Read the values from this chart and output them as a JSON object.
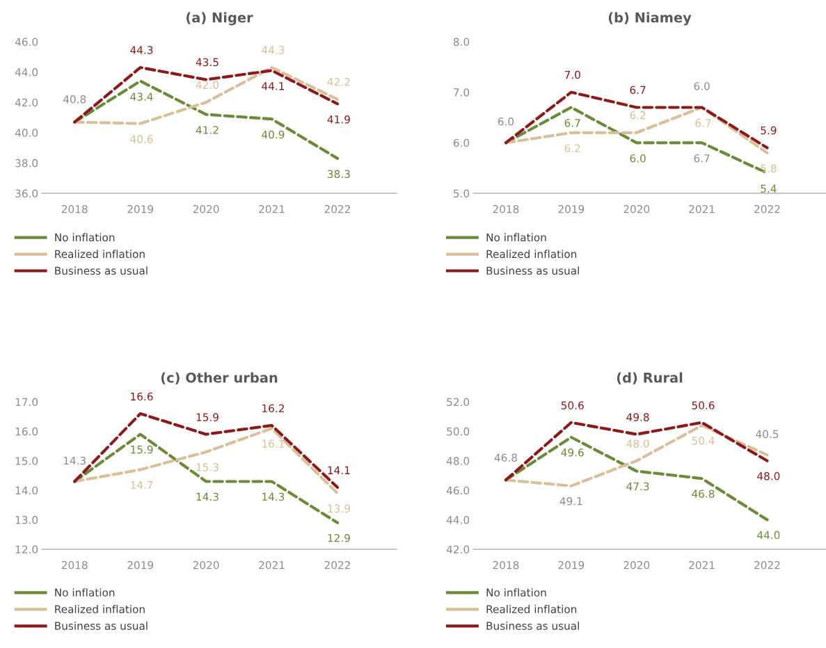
{
  "chart_data": [
    {
      "type": "line",
      "title": "(a) Niger",
      "categories": [
        "2018",
        "2019",
        "2020",
        "2021",
        "2022"
      ],
      "ylim": [
        36,
        46
      ],
      "yticks": [
        {
          "value": 36,
          "label": "36.0"
        },
        {
          "value": 38,
          "label": "38.0"
        },
        {
          "value": 40,
          "label": "40.0"
        },
        {
          "value": 42,
          "label": "42.0"
        },
        {
          "value": 44,
          "label": "44.0"
        },
        {
          "value": 46,
          "label": "46.0"
        }
      ],
      "grid": false,
      "legend": "bottom",
      "line_style": "dashed",
      "marker": "none",
      "annotations": [
        {
          "text": "40.8",
          "x": "2018",
          "y": 40.8
        }
      ],
      "series": [
        {
          "name": "No inflation",
          "color": "#6b8a3a",
          "values": [
            40.7,
            43.4,
            41.2,
            40.9,
            38.3
          ],
          "value_labels": [
            null,
            "43.4",
            "41.2",
            "40.9",
            "38.3"
          ]
        },
        {
          "name": "Realized inflation",
          "color": "#d9bf9a",
          "values": [
            40.7,
            40.6,
            42.0,
            44.3,
            42.2
          ],
          "value_labels": [
            null,
            "40.6",
            "42.0",
            "44.3",
            "42.2"
          ]
        },
        {
          "name": "Business as usual",
          "color": "#8b1a1a",
          "values": [
            40.7,
            44.3,
            43.5,
            44.1,
            41.9
          ],
          "value_labels": [
            null,
            "44.3",
            "43.5",
            "44.1",
            "41.9"
          ]
        }
      ]
    },
    {
      "type": "line",
      "title": "(b) Niamey",
      "categories": [
        "2018",
        "2019",
        "2020",
        "2021",
        "2022"
      ],
      "ylim": [
        5,
        8
      ],
      "yticks": [
        {
          "value": 5,
          "label": "5.0"
        },
        {
          "value": 6,
          "label": "6.0"
        },
        {
          "value": 7,
          "label": "7.0"
        },
        {
          "value": 8,
          "label": "8.0"
        }
      ],
      "grid": false,
      "legend": "bottom",
      "line_style": "dashed",
      "marker": "none",
      "annotations": [
        {
          "text": "6.0",
          "x": "2018",
          "y": 6.0
        },
        {
          "text": "6.7",
          "x": "2021",
          "y": 6.0
        },
        {
          "text": "6.0",
          "x": "2021",
          "y": 6.7
        }
      ],
      "series": [
        {
          "name": "No inflation",
          "color": "#6b8a3a",
          "values": [
            6.0,
            6.7,
            6.0,
            6.0,
            5.4
          ],
          "value_labels": [
            null,
            "6.7",
            "6.0",
            null,
            "5.4"
          ]
        },
        {
          "name": "Realized inflation",
          "color": "#d9bf9a",
          "values": [
            6.0,
            6.2,
            6.2,
            6.7,
            5.8
          ],
          "value_labels": [
            null,
            "6.2",
            "6.2",
            "6.7",
            "5.8"
          ]
        },
        {
          "name": "Business as usual",
          "color": "#8b1a1a",
          "values": [
            6.0,
            7.0,
            6.7,
            6.7,
            5.9
          ],
          "value_labels": [
            null,
            "7.0",
            "6.7",
            null,
            "5.9"
          ]
        }
      ]
    },
    {
      "type": "line",
      "title": "(c) Other urban",
      "categories": [
        "2018",
        "2019",
        "2020",
        "2021",
        "2022"
      ],
      "ylim": [
        12,
        17
      ],
      "yticks": [
        {
          "value": 12,
          "label": "12.0"
        },
        {
          "value": 13,
          "label": "13.0"
        },
        {
          "value": 14,
          "label": "14.0"
        },
        {
          "value": 15,
          "label": "15.0"
        },
        {
          "value": 16,
          "label": "16.0"
        },
        {
          "value": 17,
          "label": "17.0"
        }
      ],
      "grid": false,
      "legend": "bottom",
      "line_style": "dashed",
      "marker": "none",
      "annotations": [
        {
          "text": "14.3",
          "x": "2018",
          "y": 14.3
        }
      ],
      "series": [
        {
          "name": "No inflation",
          "color": "#6b8a3a",
          "values": [
            14.3,
            15.9,
            14.3,
            14.3,
            12.9
          ],
          "value_labels": [
            null,
            "15.9",
            "14.3",
            "14.3",
            "12.9"
          ]
        },
        {
          "name": "Realized inflation",
          "color": "#d9bf9a",
          "values": [
            14.3,
            14.7,
            15.3,
            16.1,
            13.9
          ],
          "value_labels": [
            null,
            "14.7",
            "15.3",
            "16.1",
            "13.9"
          ]
        },
        {
          "name": "Business as usual",
          "color": "#8b1a1a",
          "values": [
            14.3,
            16.6,
            15.9,
            16.2,
            14.1
          ],
          "value_labels": [
            null,
            "16.6",
            "15.9",
            "16.2",
            "14.1"
          ]
        }
      ]
    },
    {
      "type": "line",
      "title": "(d) Rural",
      "categories": [
        "2018",
        "2019",
        "2020",
        "2021",
        "2022"
      ],
      "ylim": [
        42,
        52
      ],
      "yticks": [
        {
          "value": 42,
          "label": "42.0"
        },
        {
          "value": 44,
          "label": "44.0"
        },
        {
          "value": 46,
          "label": "46.0"
        },
        {
          "value": 48,
          "label": "48.0"
        },
        {
          "value": 50,
          "label": "50.0"
        },
        {
          "value": 52,
          "label": "52.0"
        }
      ],
      "grid": false,
      "legend": "bottom",
      "line_style": "dashed",
      "marker": "none",
      "annotations": [
        {
          "text": "46.8",
          "x": "2018",
          "y": 46.8
        },
        {
          "text": "49.1",
          "x": "2019",
          "y": 46.3
        },
        {
          "text": "40.5",
          "x": "2022",
          "y": 48.4
        }
      ],
      "series": [
        {
          "name": "No inflation",
          "color": "#6b8a3a",
          "values": [
            46.7,
            49.6,
            47.3,
            46.8,
            44.0
          ],
          "value_labels": [
            null,
            "49.6",
            "47.3",
            "46.8",
            "44.0"
          ]
        },
        {
          "name": "Realized inflation",
          "color": "#d9bf9a",
          "values": [
            46.7,
            46.3,
            48.0,
            50.4,
            48.4
          ],
          "value_labels": [
            null,
            null,
            "48.0",
            "50.4",
            null
          ]
        },
        {
          "name": "Business as usual",
          "color": "#8b1a1a",
          "values": [
            46.7,
            50.6,
            49.8,
            50.6,
            48.0
          ],
          "value_labels": [
            null,
            "50.6",
            "49.8",
            "50.6",
            "48.0"
          ]
        }
      ]
    }
  ]
}
